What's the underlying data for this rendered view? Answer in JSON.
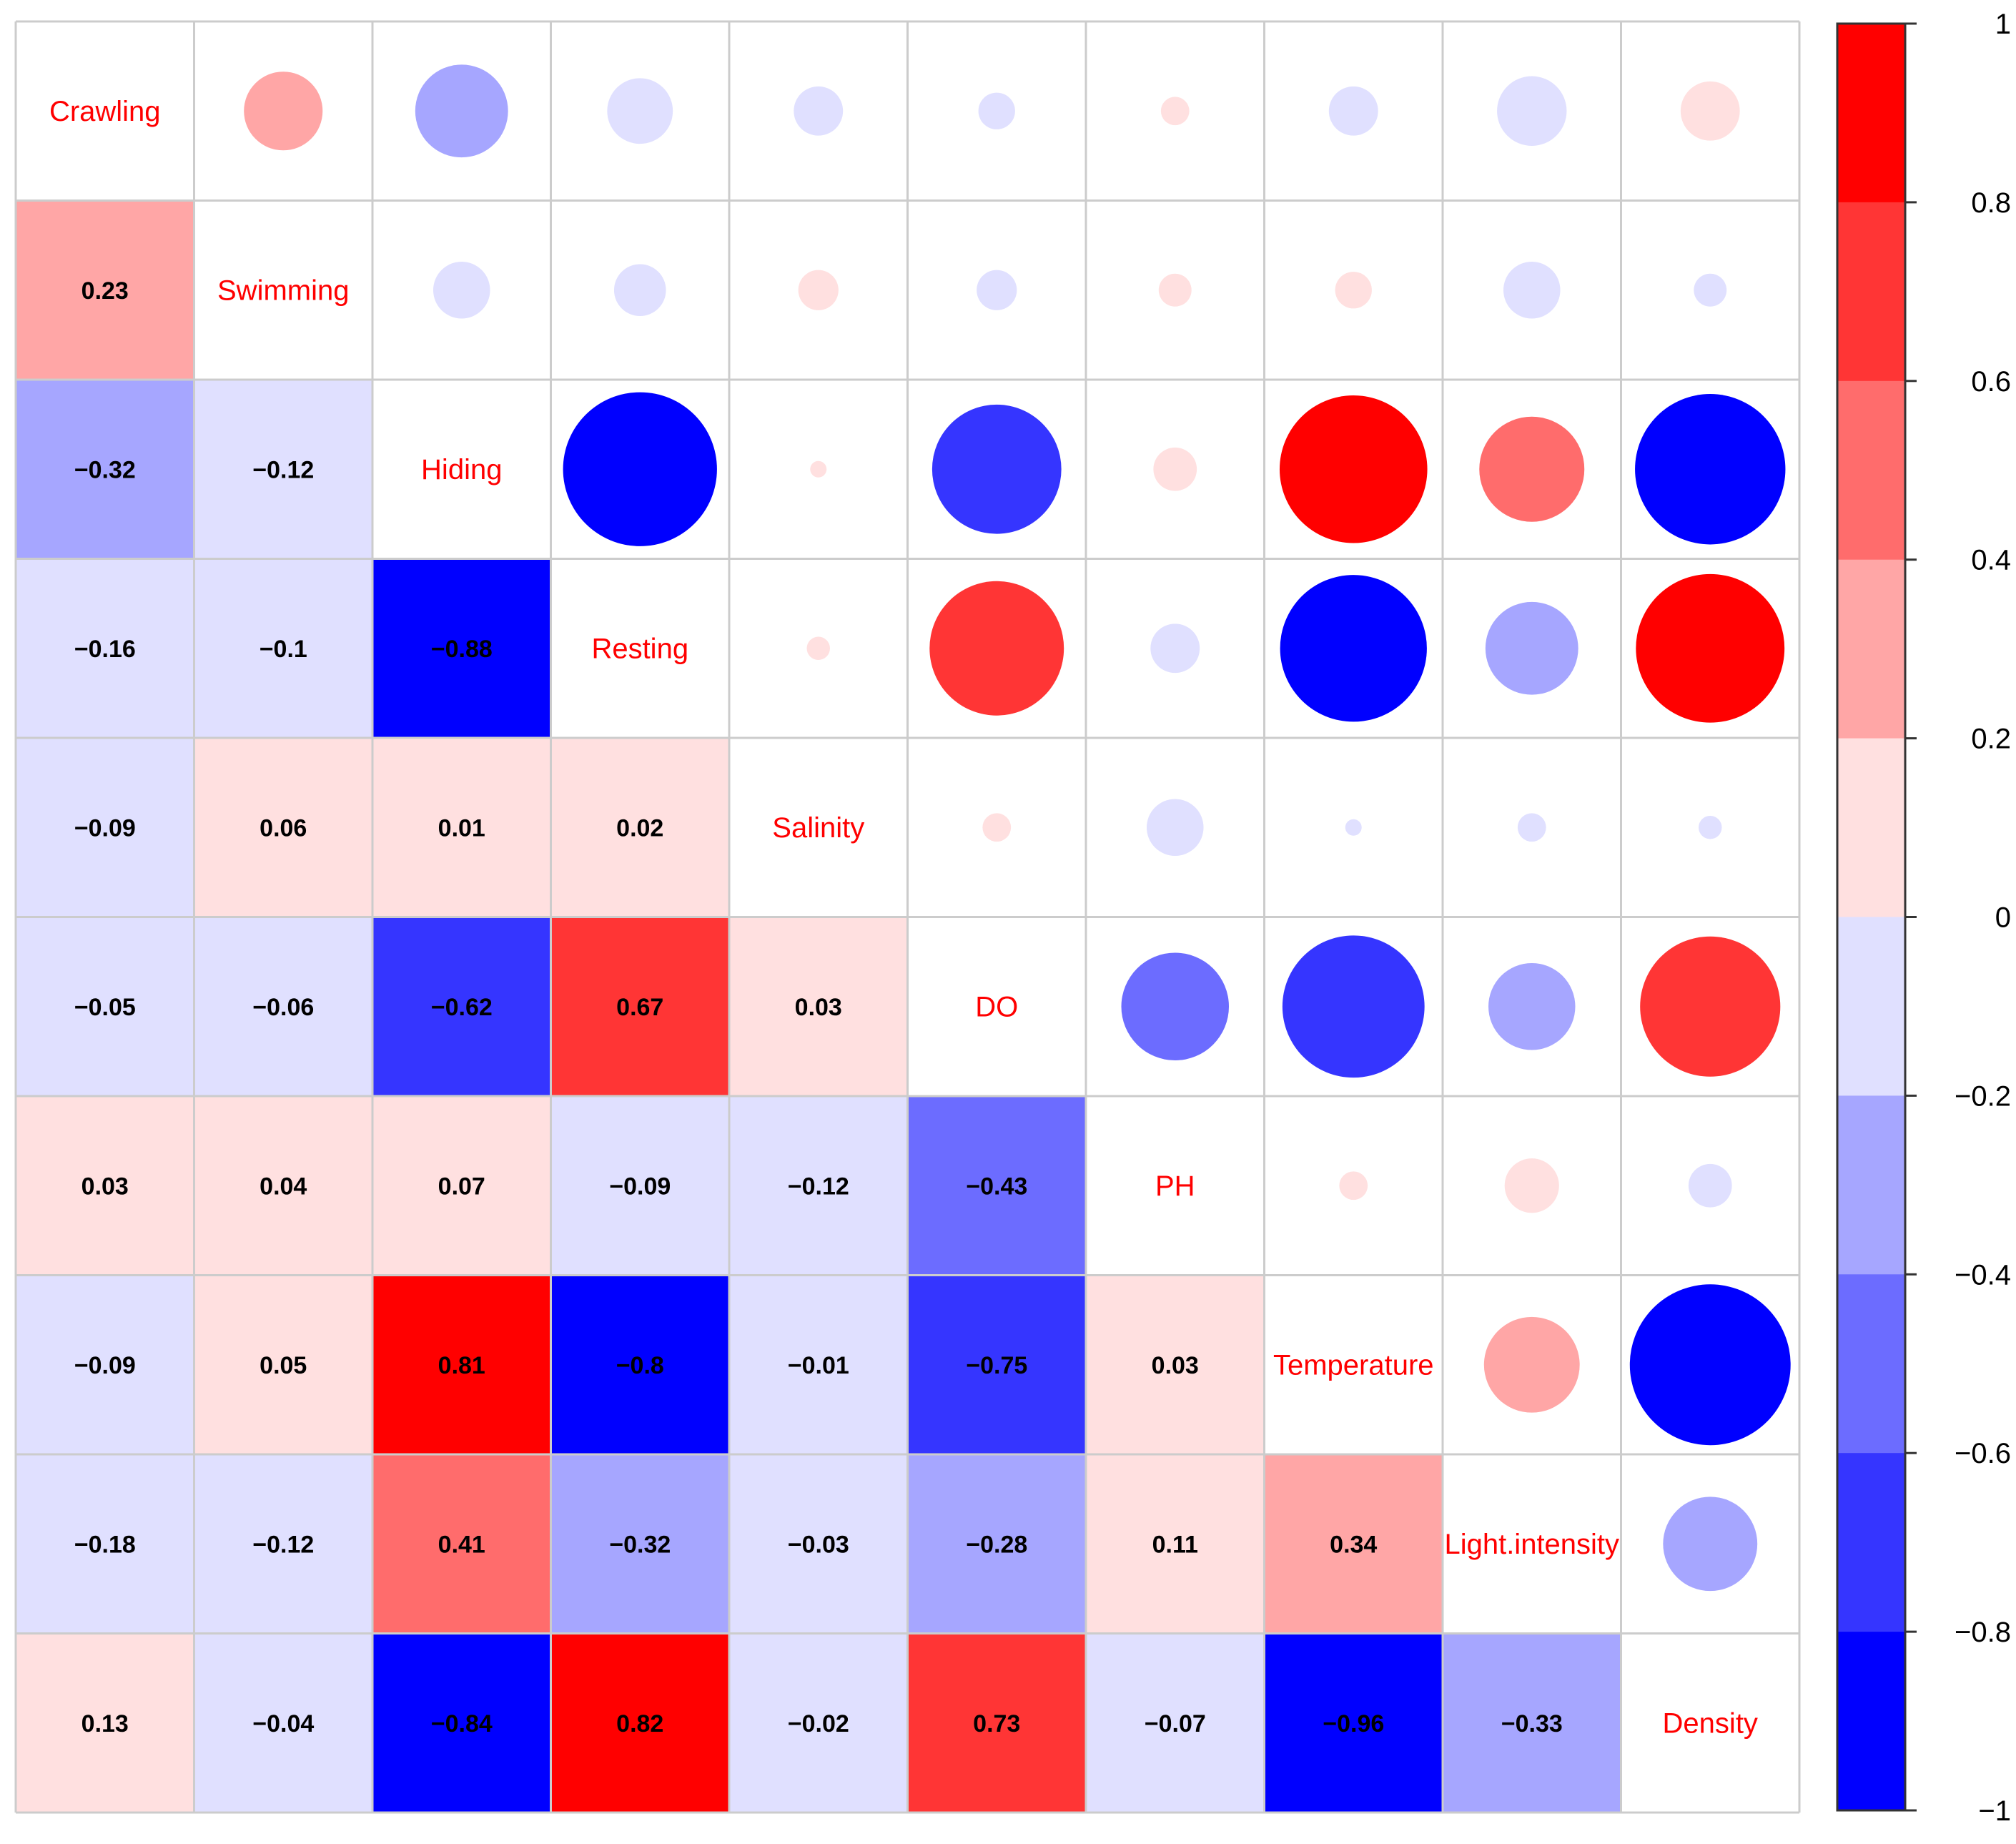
{
  "chart_data": {
    "type": "heatmap",
    "variant": "correlation-matrix",
    "title": "",
    "upper_triangle": "circle",
    "lower_triangle": "number",
    "variables": [
      "Crawling",
      "Swimming",
      "Hiding",
      "Resting",
      "Salinity",
      "DO",
      "PH",
      "Temperature",
      "Light.intensity",
      "Density"
    ],
    "matrix": [
      [
        1,
        0.23,
        -0.32,
        -0.16,
        -0.09,
        -0.05,
        0.03,
        -0.09,
        -0.18,
        0.13
      ],
      [
        0.23,
        1,
        -0.12,
        -0.1,
        0.06,
        -0.06,
        0.04,
        0.05,
        -0.12,
        -0.04
      ],
      [
        -0.32,
        -0.12,
        1,
        -0.88,
        0.01,
        -0.62,
        0.07,
        0.81,
        0.41,
        -0.84
      ],
      [
        -0.16,
        -0.1,
        -0.88,
        1,
        0.02,
        0.67,
        -0.09,
        -0.8,
        -0.32,
        0.82
      ],
      [
        -0.09,
        0.06,
        0.01,
        0.02,
        1,
        0.03,
        -0.12,
        -0.01,
        -0.03,
        -0.02
      ],
      [
        -0.05,
        -0.06,
        -0.62,
        0.67,
        0.03,
        1,
        -0.43,
        -0.75,
        -0.28,
        0.73
      ],
      [
        0.03,
        0.04,
        0.07,
        -0.09,
        -0.12,
        -0.43,
        1,
        0.03,
        0.11,
        -0.07
      ],
      [
        -0.09,
        0.05,
        0.81,
        -0.8,
        -0.01,
        -0.75,
        0.03,
        1,
        0.34,
        -0.96
      ],
      [
        -0.18,
        -0.12,
        0.41,
        -0.32,
        -0.03,
        -0.28,
        0.11,
        0.34,
        1,
        -0.33
      ],
      [
        0.13,
        -0.04,
        -0.84,
        0.82,
        -0.02,
        0.73,
        -0.07,
        -0.96,
        -0.33,
        1
      ]
    ],
    "number_labels": [
      [
        "",
        "",
        "",
        "",
        "",
        "",
        "",
        "",
        "",
        ""
      ],
      [
        "0.23",
        "",
        "",
        "",
        "",
        "",
        "",
        "",
        "",
        ""
      ],
      [
        "−0.32",
        "−0.12",
        "",
        "",
        "",
        "",
        "",
        "",
        "",
        ""
      ],
      [
        "−0.16",
        "−0.1",
        "−0.88",
        "",
        "",
        "",
        "",
        "",
        "",
        ""
      ],
      [
        "−0.09",
        "0.06",
        "0.01",
        "0.02",
        "",
        "",
        "",
        "",
        "",
        ""
      ],
      [
        "−0.05",
        "−0.06",
        "−0.62",
        "0.67",
        "0.03",
        "",
        "",
        "",
        "",
        ""
      ],
      [
        "0.03",
        "0.04",
        "0.07",
        "−0.09",
        "−0.12",
        "−0.43",
        "",
        "",
        "",
        ""
      ],
      [
        "−0.09",
        "0.05",
        "0.81",
        "−0.8",
        "−0.01",
        "−0.75",
        "0.03",
        "",
        "",
        ""
      ],
      [
        "−0.18",
        "−0.12",
        "0.41",
        "−0.32",
        "−0.03",
        "−0.28",
        "0.11",
        "0.34",
        "",
        ""
      ],
      [
        "0.13",
        "−0.04",
        "−0.84",
        "0.82",
        "−0.02",
        "0.73",
        "−0.07",
        "−0.96",
        "−0.33",
        ""
      ]
    ],
    "color_scale": {
      "range": [
        -1,
        1
      ],
      "bins": 10,
      "colors": [
        "#0000FF",
        "#3535FF",
        "#6C6CFF",
        "#A6A6FF",
        "#E0E0FF",
        "#FFE0E0",
        "#FFA6A6",
        "#FF6C6C",
        "#FF3535",
        "#FF0000"
      ],
      "ticks": [
        1,
        0.8,
        0.6,
        0.4,
        0.2,
        0,
        -0.2,
        -0.4,
        -0.6,
        -0.8,
        -1
      ],
      "tick_labels": [
        "1",
        "0.8",
        "0.6",
        "0.4",
        "0.2",
        "0",
        "−0.2",
        "−0.4",
        "−0.6",
        "−0.8",
        "−1"
      ],
      "legend_position": "right"
    },
    "grid": true,
    "label_color": "#FF0000",
    "grid_color": "#CCCCCC"
  }
}
